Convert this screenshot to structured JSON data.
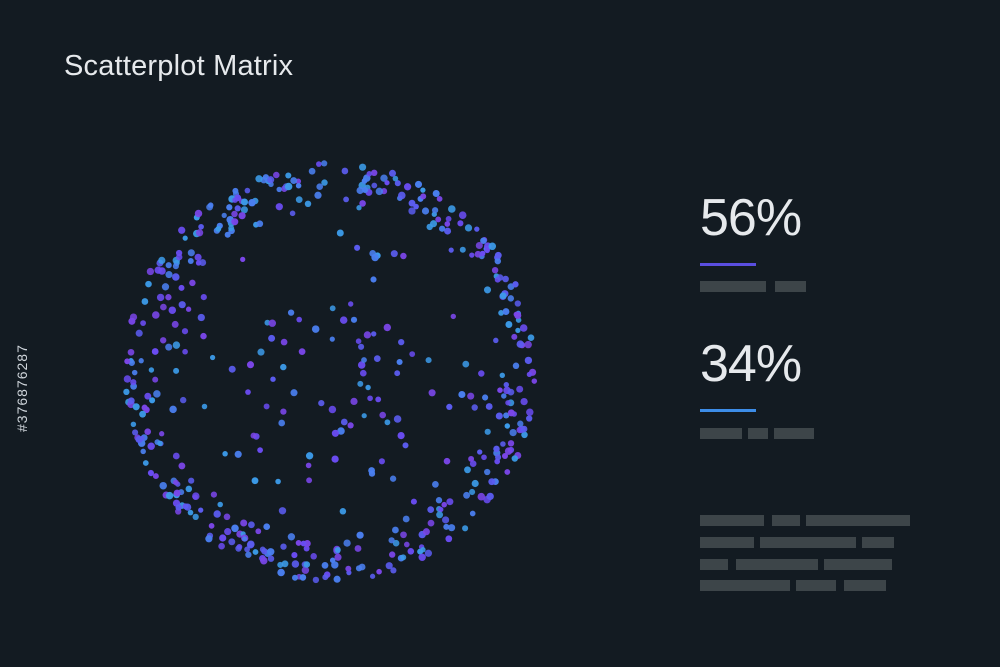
{
  "title": "Scatterplot Matrix",
  "stats": [
    {
      "value": "56%",
      "accent_color": "#5a4ee0"
    },
    {
      "value": "34%",
      "accent_color": "#3d8de8"
    }
  ],
  "placeholder_color": "#3d4549",
  "watermark_id": "#376876287",
  "colors": {
    "background": "#131b22",
    "point_palette": [
      "#6a4cf2",
      "#5b5cf0",
      "#4a7ff0",
      "#3c9be9",
      "#7a46e8"
    ]
  },
  "chart_data": {
    "type": "scatter",
    "title": "Scatterplot Matrix",
    "shape": "ring",
    "approx_point_count": 520,
    "series": []
  }
}
